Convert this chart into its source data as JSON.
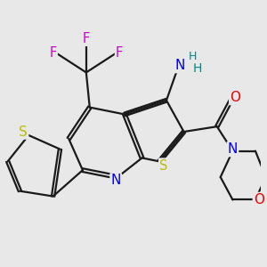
{
  "background_color": "#e8e8e8",
  "bond_color": "#1a1a1a",
  "bond_width": 1.6,
  "atom_colors": {
    "F": "#cc00cc",
    "N": "#0000ee",
    "O": "#ee0000",
    "S": "#bbbb00",
    "H": "#008888",
    "C": "#1a1a1a"
  },
  "fs": 10.5,
  "fss": 9.0
}
